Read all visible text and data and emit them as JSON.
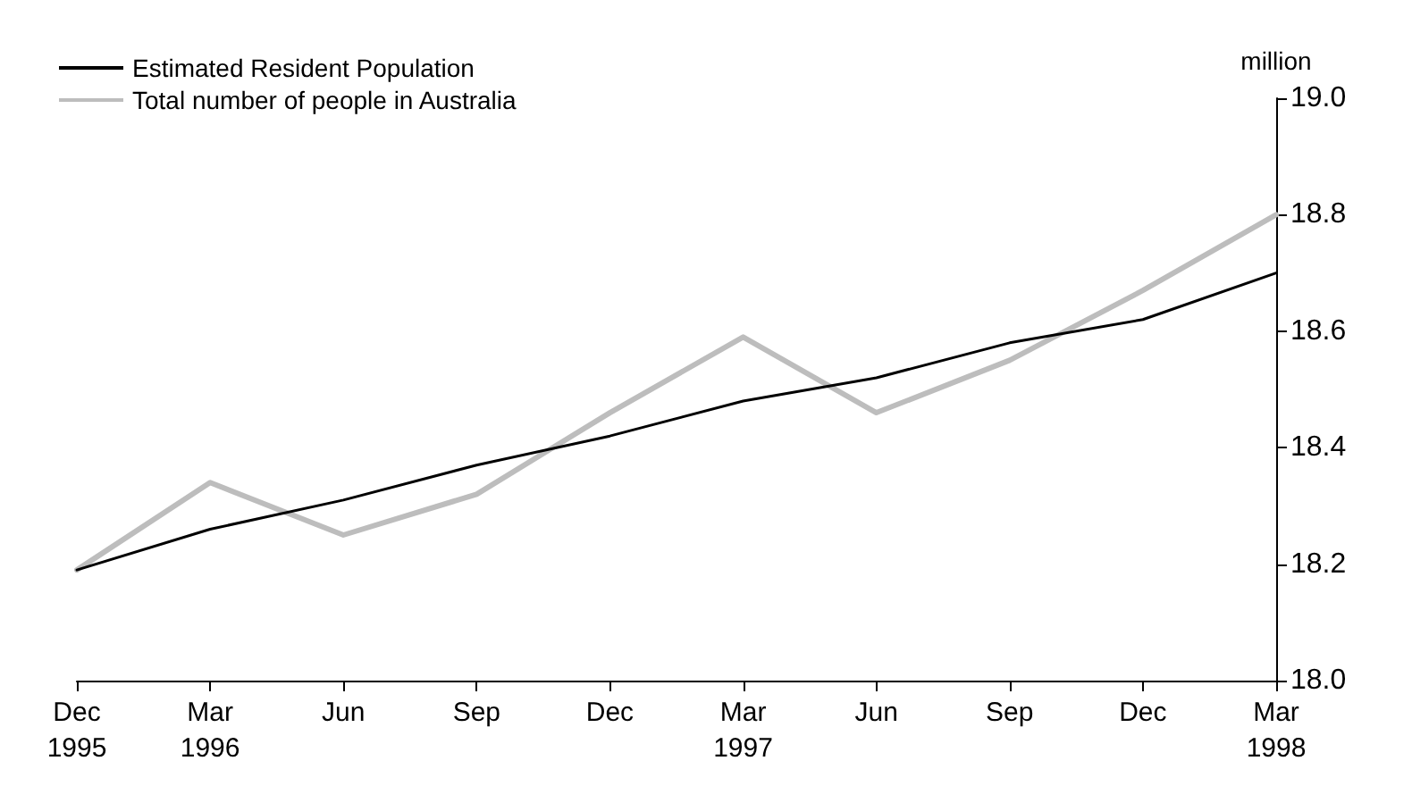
{
  "chart_data": {
    "type": "line",
    "ylabel": "million",
    "categories": [
      "Dec\n1995",
      "Mar\n1996",
      "Jun",
      "Sep",
      "Dec",
      "Mar\n1997",
      "Jun",
      "Sep",
      "Dec",
      "Mar\n1998"
    ],
    "series": [
      {
        "name": "Estimated Resident Population",
        "color": "#000000",
        "values": [
          18.19,
          18.26,
          18.31,
          18.37,
          18.42,
          18.48,
          18.52,
          18.58,
          18.62,
          18.7
        ]
      },
      {
        "name": "Total number of people in Australia",
        "color": "#bdbdbd",
        "values": [
          18.19,
          18.34,
          18.25,
          18.32,
          18.46,
          18.59,
          18.46,
          18.55,
          18.67,
          18.8
        ]
      }
    ],
    "ylim": [
      18.0,
      19.0
    ],
    "yticks": [
      {
        "value": 18,
        "label": "18.0"
      },
      18.2,
      18.4,
      18.6,
      18.8,
      {
        "value": 19,
        "label": "19.0"
      }
    ],
    "grid": false,
    "legend": "top left",
    "marker": "none",
    "line_style": "solid"
  }
}
